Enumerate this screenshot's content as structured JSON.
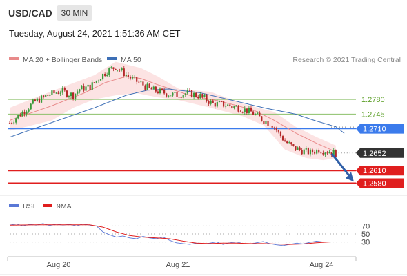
{
  "header": {
    "pair": "USD/CAD",
    "timeframe": "30 MIN",
    "datetime": "Tuesday, August 24, 2021 1:51:36 AM CET"
  },
  "legend": {
    "ma20": "MA 20 + Bollinger Bands",
    "ma50": "MA 50",
    "credit": "Research © 2021 Trading Central"
  },
  "rsi_legend": {
    "rsi": "RSI",
    "ma9": "9MA"
  },
  "colors": {
    "up": "#3a9a3a",
    "down": "#b42828",
    "ma20": "#e88a8a",
    "band_fill": "#fbdada",
    "ma50": "#3d6fb6",
    "resistance": "#8cc06a",
    "pivot": "#3b7bec",
    "support": "#e01e1e",
    "last_price": "#333333",
    "arrow": "#2f5fa8",
    "rsi": "#5a78d6",
    "rsi_ma": "#e01e1e"
  },
  "chart_data": [
    {
      "type": "candlestick",
      "title": "",
      "x_ticks": [
        "Aug 20",
        "Aug 21",
        "Aug 24"
      ],
      "y_range": [
        1.2556,
        1.2861
      ],
      "levels": [
        {
          "kind": "resistance",
          "value": 1.278,
          "label": "1.2780"
        },
        {
          "kind": "resistance",
          "value": 1.2745,
          "label": "1.2745"
        },
        {
          "kind": "pivot",
          "value": 1.271,
          "label": "1.2710"
        },
        {
          "kind": "last",
          "value": 1.2652,
          "label": "1.2652"
        },
        {
          "kind": "support",
          "value": 1.261,
          "label": "1.2610"
        },
        {
          "kind": "support",
          "value": 1.258,
          "label": "1.2580"
        }
      ],
      "anchors": [
        {
          "i": 0,
          "close": 1.2724
        },
        {
          "i": 5,
          "close": 1.2745
        },
        {
          "i": 12,
          "close": 1.2775
        },
        {
          "i": 18,
          "close": 1.279
        },
        {
          "i": 24,
          "close": 1.28
        },
        {
          "i": 30,
          "close": 1.279
        },
        {
          "i": 33,
          "close": 1.2805
        },
        {
          "i": 38,
          "close": 1.281
        },
        {
          "i": 42,
          "close": 1.283
        },
        {
          "i": 46,
          "close": 1.2848
        },
        {
          "i": 50,
          "close": 1.2858
        },
        {
          "i": 54,
          "close": 1.2843
        },
        {
          "i": 58,
          "close": 1.2828
        },
        {
          "i": 62,
          "close": 1.2818
        },
        {
          "i": 66,
          "close": 1.2805
        },
        {
          "i": 72,
          "close": 1.2797
        },
        {
          "i": 78,
          "close": 1.279
        },
        {
          "i": 84,
          "close": 1.2795
        },
        {
          "i": 90,
          "close": 1.2788
        },
        {
          "i": 96,
          "close": 1.277
        },
        {
          "i": 102,
          "close": 1.2767
        },
        {
          "i": 108,
          "close": 1.276
        },
        {
          "i": 114,
          "close": 1.275
        },
        {
          "i": 120,
          "close": 1.273
        },
        {
          "i": 124,
          "close": 1.272
        },
        {
          "i": 127,
          "close": 1.27
        },
        {
          "i": 130,
          "close": 1.268
        },
        {
          "i": 134,
          "close": 1.2665
        },
        {
          "i": 138,
          "close": 1.2658
        },
        {
          "i": 142,
          "close": 1.2653
        },
        {
          "i": 146,
          "close": 1.266
        },
        {
          "i": 150,
          "close": 1.2656
        },
        {
          "i": 154,
          "close": 1.2652
        }
      ],
      "bands": {
        "upper": [
          [
            0,
            1.276
          ],
          [
            20,
            1.28
          ],
          [
            40,
            1.2838
          ],
          [
            50,
            1.287
          ],
          [
            62,
            1.2855
          ],
          [
            70,
            1.2835
          ],
          [
            80,
            1.2805
          ],
          [
            95,
            1.2798
          ],
          [
            110,
            1.277
          ],
          [
            125,
            1.275
          ],
          [
            135,
            1.2715
          ],
          [
            145,
            1.269
          ],
          [
            154,
            1.267
          ]
        ],
        "lower": [
          [
            0,
            1.2705
          ],
          [
            20,
            1.273
          ],
          [
            30,
            1.276
          ],
          [
            40,
            1.278
          ],
          [
            50,
            1.279
          ],
          [
            60,
            1.2795
          ],
          [
            70,
            1.2785
          ],
          [
            80,
            1.2778
          ],
          [
            95,
            1.276
          ],
          [
            110,
            1.274
          ],
          [
            120,
            1.2718
          ],
          [
            130,
            1.266
          ],
          [
            140,
            1.264
          ],
          [
            148,
            1.2635
          ],
          [
            154,
            1.264
          ]
        ],
        "ma20": [
          [
            0,
            1.273
          ],
          [
            20,
            1.2765
          ],
          [
            35,
            1.2795
          ],
          [
            45,
            1.282
          ],
          [
            55,
            1.2835
          ],
          [
            62,
            1.283
          ],
          [
            70,
            1.2815
          ],
          [
            85,
            1.279
          ],
          [
            100,
            1.2775
          ],
          [
            115,
            1.2755
          ],
          [
            125,
            1.273
          ],
          [
            135,
            1.27
          ],
          [
            145,
            1.2675
          ],
          [
            154,
            1.2655
          ]
        ]
      },
      "ma50": [
        [
          0,
          1.269
        ],
        [
          20,
          1.2725
        ],
        [
          40,
          1.276
        ],
        [
          55,
          1.279
        ],
        [
          65,
          1.2802
        ],
        [
          75,
          1.2805
        ],
        [
          90,
          1.2796
        ],
        [
          105,
          1.2778
        ],
        [
          120,
          1.276
        ],
        [
          135,
          1.2745
        ],
        [
          145,
          1.2728
        ],
        [
          154,
          1.2715
        ]
      ],
      "forecast_arrow": {
        "from": 1.2652,
        "to": 1.26
      }
    },
    {
      "type": "line",
      "title": "",
      "y_ticks": [
        70,
        50,
        30
      ],
      "y_range": [
        0,
        100
      ],
      "series": [
        {
          "name": "RSI",
          "values": [
            [
              0,
              72
            ],
            [
              5,
              75
            ],
            [
              10,
              70
            ],
            [
              15,
              74
            ],
            [
              20,
              72
            ],
            [
              25,
              76
            ],
            [
              30,
              71
            ],
            [
              35,
              75
            ],
            [
              40,
              72
            ],
            [
              45,
              74
            ],
            [
              50,
              70
            ],
            [
              55,
              75
            ],
            [
              60,
              72
            ],
            [
              65,
              70
            ],
            [
              70,
              55
            ],
            [
              75,
              48
            ],
            [
              80,
              42
            ],
            [
              85,
              45
            ],
            [
              90,
              40
            ],
            [
              95,
              38
            ],
            [
              100,
              44
            ],
            [
              105,
              40
            ],
            [
              110,
              38
            ],
            [
              115,
              42
            ],
            [
              120,
              34
            ],
            [
              125,
              28
            ],
            [
              130,
              26
            ],
            [
              135,
              24
            ],
            [
              140,
              27
            ],
            [
              145,
              25
            ],
            [
              150,
              27
            ],
            [
              155,
              30
            ],
            [
              160,
              24
            ],
            [
              165,
              28
            ],
            [
              170,
              30
            ],
            [
              175,
              26
            ],
            [
              180,
              25
            ],
            [
              185,
              28
            ],
            [
              190,
              31
            ],
            [
              195,
              26
            ],
            [
              200,
              23
            ],
            [
              205,
              21
            ],
            [
              210,
              24
            ],
            [
              215,
              27
            ],
            [
              220,
              25
            ],
            [
              225,
              29
            ],
            [
              230,
              32
            ],
            [
              235,
              30
            ],
            [
              240,
              30
            ]
          ]
        },
        {
          "name": "9MA",
          "values": [
            [
              0,
              72
            ],
            [
              20,
              73
            ],
            [
              40,
              73
            ],
            [
              60,
              73
            ],
            [
              70,
              67
            ],
            [
              80,
              55
            ],
            [
              90,
              46
            ],
            [
              100,
              42
            ],
            [
              110,
              40
            ],
            [
              120,
              38
            ],
            [
              130,
              32
            ],
            [
              140,
              27
            ],
            [
              150,
              26
            ],
            [
              160,
              27
            ],
            [
              170,
              27
            ],
            [
              180,
              26
            ],
            [
              190,
              26
            ],
            [
              200,
              25
            ],
            [
              210,
              24
            ],
            [
              220,
              25
            ],
            [
              230,
              28
            ],
            [
              240,
              30
            ]
          ]
        }
      ]
    }
  ]
}
